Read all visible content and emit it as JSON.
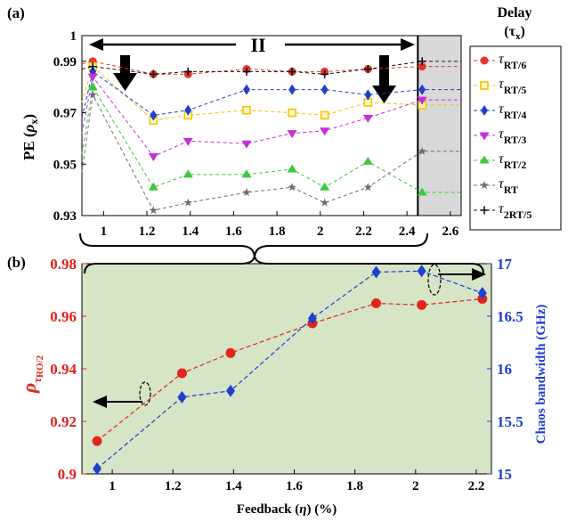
{
  "chart_data": [
    {
      "panel_label": "(a)",
      "type": "line",
      "ylabel_main": "PE (",
      "ylabel_sym": "ρ",
      "ylabel_sub": "x",
      "ylabel_end": ")",
      "ylim": [
        0.93,
        1.0
      ],
      "yticks": [
        0.93,
        0.95,
        0.97,
        0.99,
        1
      ],
      "ytick_labels": [
        "0.93",
        "0.95",
        "0.97",
        "0.99",
        "1"
      ],
      "xlim": [
        0.9,
        2.65
      ],
      "xticks": [
        1,
        1.2,
        1.4,
        1.6,
        1.8,
        2,
        2.2,
        2.4,
        2.6
      ],
      "xtick_labels": [
        "1",
        "1.2",
        "1.4",
        "1.6",
        "1.8",
        "2",
        "2.2",
        "2.4",
        "2.6"
      ],
      "region_label": "II",
      "shaded_region_x": [
        2.45,
        2.65
      ],
      "boundary_x": 2.45,
      "x": [
        0.95,
        1.23,
        1.39,
        1.66,
        1.87,
        2.02,
        2.22,
        2.47
      ],
      "legend_title": [
        "Delay",
        "(τ",
        "x",
        ")"
      ],
      "series": [
        {
          "name_sym": "τ",
          "name_sub": "RT/6",
          "color": "#e8352a",
          "marker": "circle",
          "values": [
            0.99,
            0.985,
            0.985,
            0.987,
            0.986,
            0.986,
            0.987,
            0.988
          ]
        },
        {
          "name_sym": "τ",
          "name_sub": "RT/5",
          "color": "#f5c400",
          "marker": "square",
          "values": [
            0.988,
            0.967,
            0.969,
            0.971,
            0.97,
            0.969,
            0.974,
            0.973
          ]
        },
        {
          "name_sym": "τ",
          "name_sub": "RT/4",
          "color": "#1f3fcf",
          "marker": "diamond",
          "values": [
            0.986,
            0.969,
            0.971,
            0.979,
            0.979,
            0.979,
            0.977,
            0.979
          ]
        },
        {
          "name_sym": "τ",
          "name_sub": "RT/3",
          "color": "#c72fd6",
          "marker": "triangle-down",
          "values": [
            0.984,
            0.953,
            0.959,
            0.958,
            0.962,
            0.963,
            0.968,
            0.975
          ]
        },
        {
          "name_sym": "τ",
          "name_sub": "RT/2",
          "color": "#3cc83c",
          "marker": "triangle-up",
          "values": [
            0.98,
            0.941,
            0.946,
            0.946,
            0.948,
            0.941,
            0.951,
            0.939
          ]
        },
        {
          "name_sym": "τ",
          "name_sub": "RT",
          "color": "#6e6e6e",
          "marker": "star",
          "values": [
            0.977,
            0.932,
            0.935,
            0.939,
            0.941,
            0.935,
            0.941,
            0.955
          ]
        },
        {
          "name_sym": "τ",
          "name_sub": "2RT/5",
          "color": "#111111",
          "marker": "plus",
          "values": [
            0.988,
            0.985,
            0.986,
            0.986,
            0.986,
            0.985,
            0.987,
            0.99
          ]
        }
      ]
    },
    {
      "panel_label": "(b)",
      "type": "line",
      "xlabel_a": "Feedback (",
      "xlabel_sym": "η",
      "xlabel_b": ") (%)",
      "xlim": [
        0.9,
        2.25
      ],
      "xticks": [
        1,
        1.2,
        1.4,
        1.6,
        1.8,
        2,
        2.2
      ],
      "xtick_labels": [
        "1",
        "1.2",
        "1.4",
        "1.6",
        "1.8",
        "2",
        "2.2"
      ],
      "ylabel_left_sym": "ρ",
      "ylabel_left_sub_sym": "τ",
      "ylabel_left_sub": "RO/2",
      "ylabel_right": "Chaos bandwidth (GHz)",
      "ylim_left": [
        0.9,
        0.98
      ],
      "yticks_left": [
        0.9,
        0.92,
        0.94,
        0.96,
        0.98
      ],
      "ytick_labels_left": [
        "0.9",
        "0.92",
        "0.94",
        "0.96",
        "0.98"
      ],
      "ylim_right": [
        15,
        17
      ],
      "yticks_right": [
        15,
        15.5,
        16,
        16.5,
        17
      ],
      "ytick_labels_right": [
        "15",
        "15.5",
        "16",
        "16.5",
        "17"
      ],
      "background_color": "#d5e5c6",
      "left_axis_color": "#e8201a",
      "right_axis_color": "#1f3fcf",
      "series": [
        {
          "axis": "left",
          "color": "#e0251e",
          "marker": "circle",
          "x": [
            0.95,
            1.23,
            1.39,
            1.66,
            1.87,
            2.02,
            2.22
          ],
          "values": [
            0.9125,
            0.9383,
            0.946,
            0.9573,
            0.9649,
            0.9643,
            0.9666
          ]
        },
        {
          "axis": "right",
          "color": "#1f3fcf",
          "marker": "diamond",
          "x": [
            0.95,
            1.23,
            1.39,
            1.66,
            1.87,
            2.02,
            2.22
          ],
          "values": [
            15.05,
            15.73,
            15.79,
            16.48,
            16.92,
            16.93,
            16.72
          ]
        }
      ]
    }
  ]
}
